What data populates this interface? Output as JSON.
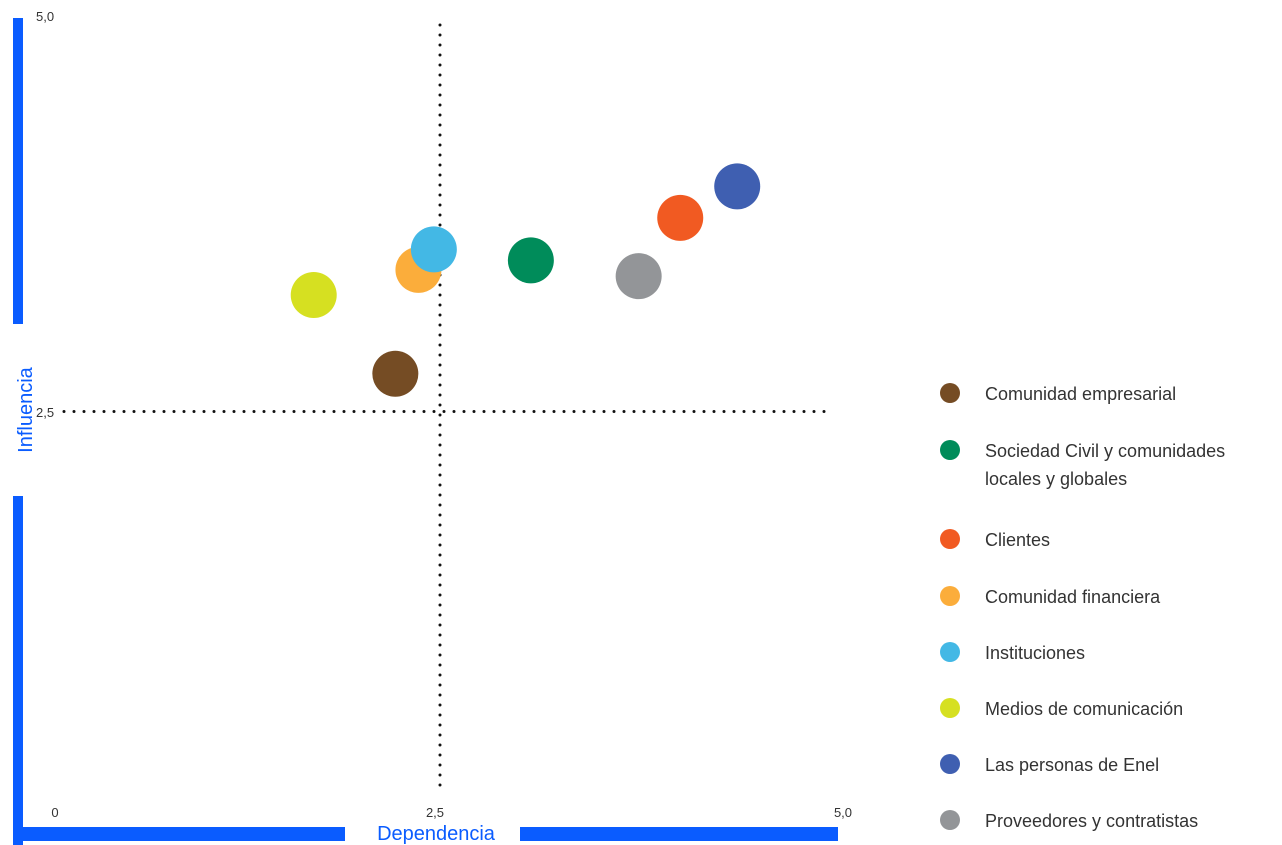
{
  "chart_data": {
    "type": "scatter",
    "xlabel": "Dependencia",
    "ylabel": "Influencia",
    "xlim": [
      0,
      5
    ],
    "ylim": [
      0,
      5
    ],
    "x_ticks": [
      "0",
      "2,5",
      "5,0"
    ],
    "y_ticks": [
      "0",
      "2,5",
      "5,0"
    ],
    "reference_lines": {
      "x": 2.5,
      "y": 2.5,
      "style": "dotted"
    },
    "grid": false,
    "legend_position": "right",
    "axis_color": "#0a5cff",
    "points": [
      {
        "name": "Comunidad empresarial",
        "x": 2.21,
        "y": 2.74,
        "color": "#754c24"
      },
      {
        "name": "Sociedad Civil y comunidades locales y globales",
        "x": 3.09,
        "y": 3.46,
        "color": "#008c5a"
      },
      {
        "name": "Clientes",
        "x": 4.06,
        "y": 3.73,
        "color": "#f15a22"
      },
      {
        "name": "Comunidad financiera",
        "x": 2.36,
        "y": 3.4,
        "color": "#fbad3b"
      },
      {
        "name": "Instituciones",
        "x": 2.46,
        "y": 3.53,
        "color": "#43b8e5"
      },
      {
        "name": "Medios de comunicación",
        "x": 1.68,
        "y": 3.24,
        "color": "#d6e021"
      },
      {
        "name": "Las personas de Enel",
        "x": 4.43,
        "y": 3.93,
        "color": "#3f5fb1"
      },
      {
        "name": "Proveedores y contratistas",
        "x": 3.79,
        "y": 3.36,
        "color": "#939598"
      }
    ]
  }
}
